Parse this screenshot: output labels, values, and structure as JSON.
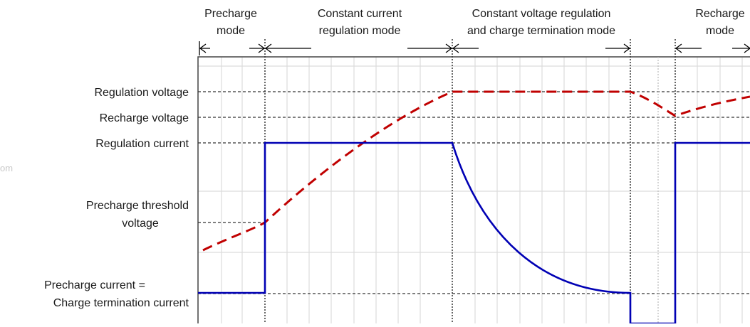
{
  "phases": [
    {
      "id": "precharge",
      "lines": [
        "Precharge",
        "mode"
      ]
    },
    {
      "id": "cc",
      "lines": [
        "Constant current",
        "regulation mode"
      ]
    },
    {
      "id": "cv",
      "lines": [
        "Constant voltage regulation",
        "and charge termination mode"
      ]
    },
    {
      "id": "recharge",
      "lines": [
        "Recharge",
        "mode"
      ]
    }
  ],
  "levels": [
    {
      "id": "regulation-voltage",
      "lines": [
        "Regulation voltage"
      ]
    },
    {
      "id": "recharge-voltage",
      "lines": [
        "Recharge voltage"
      ]
    },
    {
      "id": "regulation-current",
      "lines": [
        "Regulation current"
      ]
    },
    {
      "id": "precharge-threshold-voltage",
      "lines": [
        "Precharge threshold",
        "voltage"
      ]
    },
    {
      "id": "precharge-current",
      "lines": [
        "Precharge current =",
        "Charge termination current"
      ]
    }
  ],
  "watermark": "om",
  "colors": {
    "voltage": "#c00000",
    "current": "#0000b4",
    "grid": "#dcdcdc",
    "dashed": "#333333"
  }
}
